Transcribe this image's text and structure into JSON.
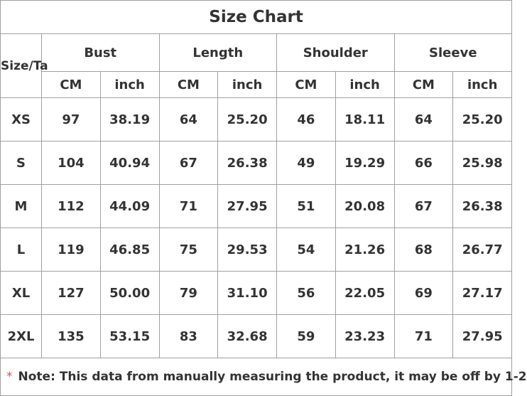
{
  "title": "Size Chart",
  "header": {
    "size": "Size/Ta",
    "groups": [
      "Bust",
      "Length",
      "Shoulder",
      "Sleeve"
    ],
    "units": [
      "CM",
      "inch",
      "CM",
      "inch",
      "CM",
      "inch",
      "CM",
      "inch"
    ]
  },
  "rows": [
    [
      "XS",
      "97",
      "38.19",
      "64",
      "25.20",
      "46",
      "18.11",
      "64",
      "25.20"
    ],
    [
      "S",
      "104",
      "40.94",
      "67",
      "26.38",
      "49",
      "19.29",
      "66",
      "25.98"
    ],
    [
      "M",
      "112",
      "44.09",
      "71",
      "27.95",
      "51",
      "20.08",
      "67",
      "26.38"
    ],
    [
      "L",
      "119",
      "46.85",
      "75",
      "29.53",
      "54",
      "21.26",
      "68",
      "26.77"
    ],
    [
      "XL",
      "127",
      "50.00",
      "79",
      "31.10",
      "56",
      "22.05",
      "69",
      "27.17"
    ],
    [
      "2XL",
      "135",
      "53.15",
      "83",
      "32.68",
      "59",
      "23.23",
      "71",
      "27.95"
    ]
  ],
  "note": {
    "mark": "*",
    "text": "Note: This data from manually measuring the product, it may be off by 1-2"
  }
}
